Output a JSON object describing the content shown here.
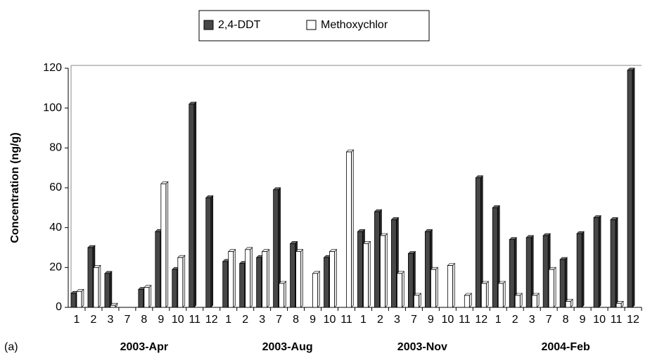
{
  "chart_data": {
    "type": "bar",
    "panel_label": "(a)",
    "y_label": "Concentration (ng/g)",
    "ylim": [
      0,
      120
    ],
    "yticks": [
      0,
      20,
      40,
      60,
      80,
      100,
      120
    ],
    "groups": [
      {
        "label": "2003-Apr",
        "categories": [
          "1",
          "2",
          "3",
          "7",
          "8",
          "9",
          "10",
          "11",
          "12"
        ]
      },
      {
        "label": "2003-Aug",
        "categories": [
          "1",
          "2",
          "3",
          "7",
          "8",
          "9",
          "10",
          "11"
        ]
      },
      {
        "label": "2003-Nov",
        "categories": [
          "1",
          "2",
          "3",
          "7",
          "9",
          "10",
          "11",
          "12"
        ]
      },
      {
        "label": "2004-Feb",
        "categories": [
          "1",
          "2",
          "3",
          "7",
          "8",
          "9",
          "10",
          "11",
          "12"
        ]
      }
    ],
    "series": [
      {
        "name": "2,4-DDT",
        "color": "#474747",
        "values": [
          7,
          30,
          17,
          0,
          9,
          38,
          19,
          102,
          55,
          23,
          22,
          25,
          59,
          32,
          0,
          25,
          0,
          38,
          48,
          44,
          27,
          38,
          0,
          0,
          65,
          50,
          34,
          35,
          36,
          24,
          37,
          45,
          44,
          119
        ]
      },
      {
        "name": "Methoxychlor",
        "color": "#ffffff",
        "values": [
          8,
          20,
          1,
          0,
          10,
          62,
          25,
          0,
          0,
          28,
          29,
          28,
          12,
          28,
          17,
          28,
          78,
          32,
          36,
          17,
          6,
          19,
          21,
          6,
          12,
          12,
          6,
          6,
          19,
          3,
          0,
          0,
          2,
          0
        ]
      }
    ]
  }
}
